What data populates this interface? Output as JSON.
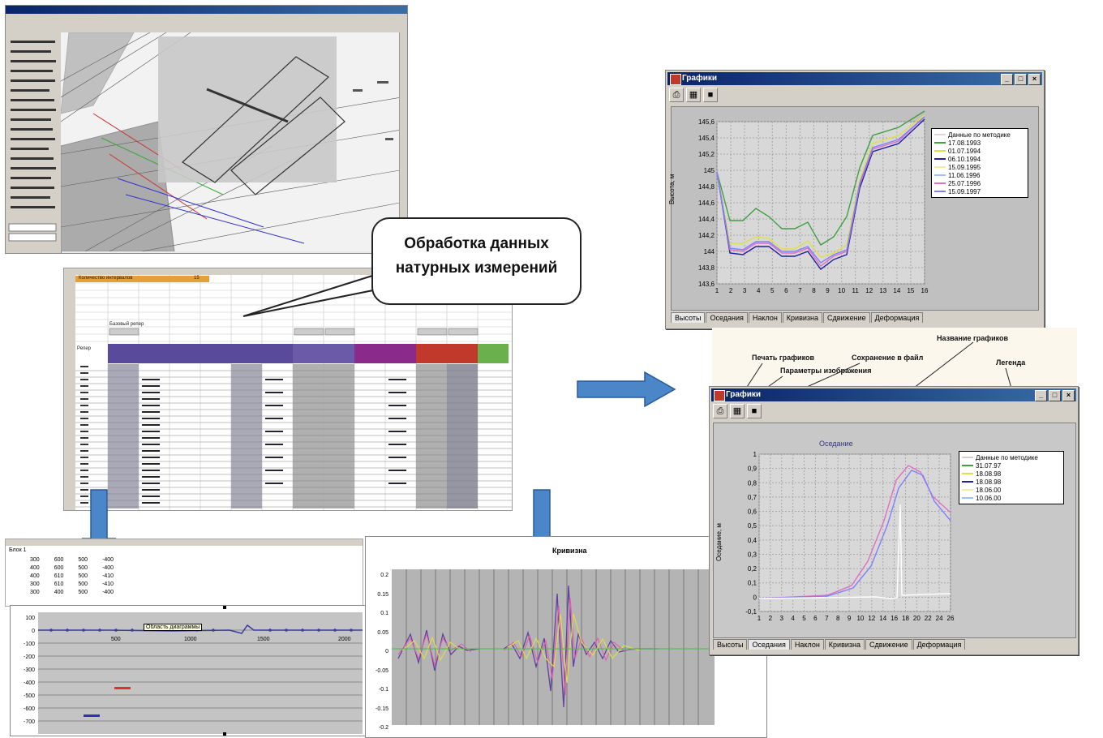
{
  "callout": {
    "line1": "Обработка данных",
    "line2": "натурных измерений"
  },
  "chart_window_top": {
    "title": "Графики",
    "ylabel": "Высота, м",
    "yticks": [
      "145,6",
      "145,4",
      "145,2",
      "145",
      "144,8",
      "144,6",
      "144,4",
      "144,2",
      "144",
      "143,8",
      "143,6"
    ],
    "xticks": [
      "1",
      "2",
      "3",
      "4",
      "5",
      "6",
      "7",
      "8",
      "9",
      "10",
      "11",
      "12",
      "13",
      "14",
      "15",
      "16"
    ],
    "legend": [
      "Данные по методике",
      "17.08.1993",
      "01.07.1994",
      "06.10.1994",
      "15.09.1995",
      "11.06.1996",
      "25.07.1996",
      "15.09.1997"
    ],
    "tabs": [
      "Высоты",
      "Оседания",
      "Наклон",
      "Кривизна",
      "Сдвижение",
      "Деформация"
    ]
  },
  "annotations": {
    "print": "Печать графиков",
    "params": "Параметры изображения",
    "save": "Сохранение в файл",
    "name": "Название графиков",
    "legend": "Легенда"
  },
  "chart_window_bottom": {
    "title": "Графики",
    "chart_title": "Оседание",
    "ylabel": "Оседание, м",
    "yticks": [
      "1",
      "0,9",
      "0,8",
      "0,7",
      "0,6",
      "0,5",
      "0,4",
      "0,3",
      "0,2",
      "0,1",
      "0",
      "-0,1"
    ],
    "xticks": [
      "1",
      "2",
      "3",
      "4",
      "5",
      "6",
      "7",
      "8",
      "9",
      "10",
      "12",
      "14",
      "16",
      "18",
      "20",
      "22",
      "24",
      "26"
    ],
    "legend": [
      "Данные по методике",
      "31.07.97",
      "18.08.98",
      "18.08.98",
      "18.06.00",
      "10.06.00"
    ],
    "tabs": [
      "Высоты",
      "Оседания",
      "Наклон",
      "Кривизна",
      "Сдвижение",
      "Деформация"
    ]
  },
  "mid_chart": {
    "title": "Кривизна",
    "yticks": [
      "0.2",
      "0.15",
      "0.1",
      "0.05",
      "0",
      "-0.05",
      "-0.1",
      "-0.15",
      "-0.2"
    ]
  },
  "left_chart": {
    "yticks": [
      "100",
      "0",
      "-100",
      "-200",
      "-300",
      "-400",
      "-500",
      "-600",
      "-700"
    ],
    "xticks": [
      "500",
      "1000",
      "1500",
      "2000"
    ],
    "tooltip": "Область диаграммы"
  },
  "spreadsheet": {
    "header": "Количество интервалов",
    "cell_value": "15",
    "labels": [
      "Базовый репер",
      "Репер"
    ]
  },
  "small_sheet": {
    "label": "Блок 1",
    "rows": [
      [
        "300",
        "600",
        "500",
        "-400"
      ],
      [
        "400",
        "600",
        "500",
        "-400"
      ],
      [
        "400",
        "610",
        "500",
        "-410"
      ],
      [
        "300",
        "610",
        "500",
        "-410"
      ],
      [
        "300",
        "400",
        "500",
        "-400"
      ]
    ]
  },
  "colors": {
    "arrow": "#4a86c8",
    "grid_bg": "#c0c0c0",
    "plot_bg": "#d8d8d8"
  }
}
